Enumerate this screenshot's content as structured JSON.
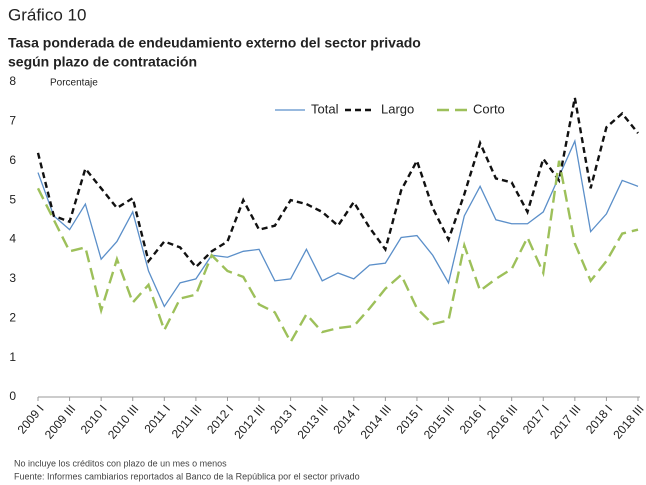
{
  "chart_data": {
    "type": "line",
    "figure_label": "Gráfico 10",
    "title": [
      "Tasa ponderada de endeudamiento externo del sector privado",
      "según plazo de contratación"
    ],
    "y_label": "Porcentaje",
    "notes": [
      "No incluye los créditos con plazo de un mes o menos",
      "Fuente: Informes cambiarios reportados al Banco de la República por el sector privado"
    ],
    "categories": [
      "2009 I",
      null,
      "2009 III",
      null,
      "2010 I",
      null,
      "2010 III",
      null,
      "2011 I",
      null,
      "2011 III",
      null,
      "2012 I",
      null,
      "2012 III",
      null,
      "2013 I",
      null,
      "2013 III",
      null,
      "2014 I",
      null,
      "2014 III",
      null,
      "2015 I",
      null,
      "2015 III",
      null,
      "2016 I",
      null,
      "2016 III",
      null,
      "2017 I",
      null,
      "2017 III",
      null,
      "2018 I",
      null,
      "2018 III"
    ],
    "series": [
      {
        "name": "Total",
        "color": "#5b8fc9",
        "dash": "solid",
        "values": [
          5.7,
          4.6,
          4.25,
          4.9,
          3.5,
          3.95,
          4.7,
          3.2,
          2.3,
          2.9,
          3.0,
          3.6,
          3.55,
          3.7,
          3.75,
          2.95,
          3.0,
          3.75,
          2.95,
          3.15,
          3.0,
          3.35,
          3.4,
          4.05,
          4.1,
          3.6,
          2.9,
          4.6,
          5.35,
          4.5,
          4.4,
          4.4,
          4.7,
          5.6,
          6.5,
          4.2,
          4.65,
          5.5,
          5.35
        ]
      },
      {
        "name": "Largo",
        "color": "#111111",
        "dash": "dashed",
        "values": [
          6.2,
          4.6,
          4.45,
          5.8,
          5.3,
          4.8,
          5.05,
          3.45,
          3.95,
          3.8,
          3.3,
          3.7,
          3.95,
          5.0,
          4.25,
          4.35,
          5.0,
          4.9,
          4.7,
          4.35,
          4.95,
          4.3,
          3.75,
          5.25,
          6.0,
          4.8,
          4.0,
          5.15,
          6.45,
          5.55,
          5.45,
          4.7,
          6.05,
          5.5,
          7.6,
          5.3,
          6.85,
          7.2,
          6.7
        ]
      },
      {
        "name": "Corto",
        "color": "#9dc05a",
        "dash": "longdash",
        "values": [
          5.3,
          4.5,
          3.7,
          3.8,
          2.2,
          3.5,
          2.4,
          2.85,
          1.7,
          2.5,
          2.6,
          3.6,
          3.2,
          3.05,
          2.35,
          2.15,
          1.4,
          2.1,
          1.65,
          1.75,
          1.8,
          2.25,
          2.75,
          3.1,
          2.25,
          1.85,
          1.95,
          3.85,
          2.7,
          3.0,
          3.25,
          4.05,
          3.15,
          6.0,
          3.9,
          2.95,
          3.45,
          4.15,
          4.25
        ]
      }
    ],
    "ylim": [
      0,
      8
    ],
    "yticks": [
      0,
      1,
      2,
      3,
      4,
      5,
      6,
      7,
      8
    ],
    "grid": false,
    "legend": "top"
  }
}
